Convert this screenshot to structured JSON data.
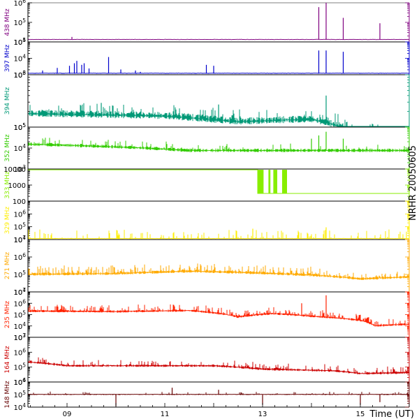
{
  "side_label": "NRHR 20050605",
  "x_axis": {
    "label": "Time (UT)",
    "start": 8.2,
    "end": 16.0,
    "ticks": [
      "09",
      "11",
      "13",
      "15"
    ],
    "tick_values": [
      9,
      11,
      13,
      15
    ]
  },
  "chart_data": [
    {
      "type": "line",
      "band": "438 MHz",
      "color": "#800080",
      "scale": "log",
      "ylim": [
        10000,
        1000000
      ],
      "y_tick_labels": [
        "10^4",
        "10^5",
        "10^6"
      ],
      "baseline": 13000,
      "noise": 0.02,
      "trend": [],
      "spikes": [
        [
          9.1,
          18000
        ],
        [
          14.15,
          600000
        ],
        [
          14.3,
          1100000
        ],
        [
          14.65,
          170000
        ],
        [
          15.4,
          90000
        ]
      ]
    },
    {
      "type": "line",
      "band": "397 MHz",
      "color": "#0000cc",
      "scale": "log",
      "ylim": [
        1000,
        100000
      ],
      "y_tick_labels": [
        "10^3",
        "10^4",
        "10^5"
      ],
      "baseline": 1200,
      "noise": 0.03,
      "trend": [],
      "spikes": [
        [
          8.5,
          1800
        ],
        [
          8.8,
          2600
        ],
        [
          9.05,
          3500
        ],
        [
          9.15,
          5000
        ],
        [
          9.2,
          7000
        ],
        [
          9.3,
          4000
        ],
        [
          9.35,
          5000
        ],
        [
          9.45,
          2400
        ],
        [
          9.85,
          12000
        ],
        [
          10.1,
          2100
        ],
        [
          10.4,
          1800
        ],
        [
          10.5,
          1500
        ],
        [
          11.85,
          4000
        ],
        [
          12.0,
          3500
        ],
        [
          14.15,
          30000
        ],
        [
          14.3,
          30000
        ],
        [
          14.65,
          25000
        ]
      ]
    },
    {
      "type": "line",
      "band": "394 MHz",
      "color": "#009977",
      "scale": "log",
      "ylim": [
        100000,
        1000000
      ],
      "y_tick_labels": [
        "10^5",
        "10^6"
      ],
      "baseline": 180000,
      "noise": 0.08,
      "burst_density": 0.15,
      "burst_max": 0.18,
      "trend": [
        [
          8.2,
          1.0
        ],
        [
          11.0,
          0.9
        ],
        [
          12.5,
          0.7
        ],
        [
          14.0,
          0.78
        ],
        [
          15.0,
          0.42
        ],
        [
          16.0,
          0.32
        ]
      ],
      "spikes": [
        [
          14.3,
          400000
        ],
        [
          9.7,
          290000
        ],
        [
          12.1,
          270000
        ]
      ]
    },
    {
      "type": "line",
      "band": "352 MHz",
      "color": "#33cc00",
      "scale": "log",
      "ylim": [
        1000,
        100000
      ],
      "y_tick_labels": [
        "10^3",
        "10^4",
        "10^5"
      ],
      "baseline": 10000,
      "noise": 0.1,
      "burst_density": 0.12,
      "burst_max": 0.3,
      "trend": [
        [
          8.2,
          1.5
        ],
        [
          10.5,
          1.0
        ],
        [
          11.5,
          0.75
        ],
        [
          16.0,
          0.75
        ]
      ],
      "spikes": [
        [
          14.0,
          28000
        ],
        [
          14.15,
          40000
        ],
        [
          14.3,
          60000
        ],
        [
          14.65,
          28000
        ]
      ]
    },
    {
      "type": "line",
      "band": "333 MHz",
      "color": "#88ee00",
      "scale": "log",
      "ylim": [
        100,
        10000
      ],
      "y_tick_labels": [
        "100",
        "1000",
        "10000"
      ],
      "step": [
        [
          8.2,
          9000
        ],
        [
          12.9,
          9000
        ],
        [
          12.9,
          300
        ],
        [
          16.0,
          300
        ]
      ],
      "blocks": [
        [
          12.9,
          13.02
        ],
        [
          13.12,
          13.16
        ],
        [
          13.22,
          13.3
        ],
        [
          13.4,
          13.5
        ]
      ],
      "block_range": [
        300,
        9000
      ],
      "spikes": [],
      "trend": []
    },
    {
      "type": "line",
      "band": "329 MHz",
      "color": "#ffee00",
      "scale": "log",
      "ylim": [
        10000,
        10000000
      ],
      "y_tick_labels": [
        "10^4",
        "10^5",
        "10^6"
      ],
      "baseline": 11500,
      "noise": 0.03,
      "burst_density": 0.2,
      "burst_max": 0.7,
      "trend": [],
      "spikes": [
        [
          14.3,
          90000
        ],
        [
          12.8,
          70000
        ]
      ]
    },
    {
      "type": "line",
      "band": "271 MHz",
      "color": "#ffaa00",
      "scale": "log",
      "ylim": [
        10000,
        10000000
      ],
      "y_tick_labels": [
        "10^4",
        "10^5",
        "10^6",
        "10^7"
      ],
      "baseline": 100000,
      "noise": 0.1,
      "burst_density": 0.3,
      "burst_max": 0.4,
      "trend": [
        [
          8.2,
          1.0
        ],
        [
          10.0,
          1.1
        ],
        [
          11.5,
          1.5
        ],
        [
          12.5,
          1.3
        ],
        [
          14.0,
          0.9
        ],
        [
          15.0,
          0.55
        ],
        [
          16.0,
          0.7
        ]
      ],
      "spikes": []
    },
    {
      "type": "line",
      "band": "235 MHz",
      "color": "#ff2200",
      "scale": "log",
      "ylim": [
        1000,
        10000000
      ],
      "y_tick_labels": [
        "10^3",
        "10^4",
        "10^5",
        "10^6",
        "10^7"
      ],
      "baseline": 200000,
      "noise": 0.12,
      "burst_density": 0.3,
      "burst_max": 0.5,
      "trend": [
        [
          8.2,
          1.0
        ],
        [
          10.0,
          0.9
        ],
        [
          11.5,
          1.1
        ],
        [
          12.5,
          0.3
        ],
        [
          13.2,
          0.6
        ],
        [
          14.0,
          0.35
        ],
        [
          15.0,
          0.15
        ],
        [
          15.3,
          0.05
        ],
        [
          16.0,
          0.07
        ]
      ],
      "spikes": [
        [
          14.3,
          5000000
        ],
        [
          13.8,
          1000000
        ]
      ]
    },
    {
      "type": "line",
      "band": "164 MHz",
      "color": "#cc0000",
      "scale": "log",
      "ylim": [
        10000,
        10000000
      ],
      "y_tick_labels": [
        "10^4",
        "10^5",
        "10^6",
        "10^7"
      ],
      "baseline": 120000,
      "noise": 0.1,
      "burst_density": 0.2,
      "burst_max": 0.35,
      "trend": [
        [
          8.2,
          1.8
        ],
        [
          9.0,
          1.0
        ],
        [
          12.0,
          1.0
        ],
        [
          13.0,
          0.6
        ],
        [
          14.5,
          0.45
        ],
        [
          15.0,
          0.3
        ],
        [
          16.0,
          0.35
        ]
      ],
      "spikes": []
    },
    {
      "type": "line",
      "band": "148 MHz",
      "color": "#660000",
      "scale": "log",
      "ylim": [
        10000,
        1000000
      ],
      "y_tick_labels": [
        "10^4",
        "10^5",
        "10^6"
      ],
      "baseline": 100000,
      "noise": 0.05,
      "burst_density": 0.08,
      "burst_max": 0.2,
      "trend": [],
      "spikes": [
        [
          11.15,
          350000
        ],
        [
          12.1,
          240000
        ],
        [
          10.0,
          12000
        ],
        [
          13.0,
          15000
        ],
        [
          15.0,
          15000
        ],
        [
          15.4,
          25000
        ]
      ]
    }
  ]
}
